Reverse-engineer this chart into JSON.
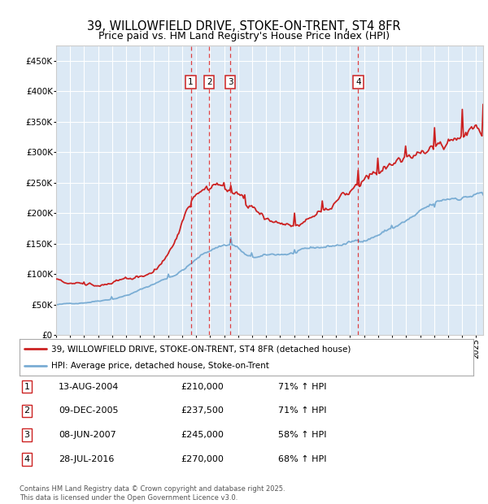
{
  "title": "39, WILLOWFIELD DRIVE, STOKE-ON-TRENT, ST4 8FR",
  "subtitle": "Price paid vs. HM Land Registry's House Price Index (HPI)",
  "ylabel_ticks": [
    "£0",
    "£50K",
    "£100K",
    "£150K",
    "£200K",
    "£250K",
    "£300K",
    "£350K",
    "£400K",
    "£450K"
  ],
  "ytick_values": [
    0,
    50000,
    100000,
    150000,
    200000,
    250000,
    300000,
    350000,
    400000,
    450000
  ],
  "ylim": [
    0,
    475000
  ],
  "xlim_start": 1995.0,
  "xlim_end": 2025.5,
  "background_color": "#dce9f5",
  "grid_color": "#ffffff",
  "sale_dates": [
    2004.617,
    2005.936,
    2007.44,
    2016.573
  ],
  "sale_prices": [
    210000,
    237500,
    245000,
    270000
  ],
  "sale_labels": [
    "1",
    "2",
    "3",
    "4"
  ],
  "vline_color": "#dd2222",
  "marker_box_color": "#cc2222",
  "legend_line1": "39, WILLOWFIELD DRIVE, STOKE-ON-TRENT, ST4 8FR (detached house)",
  "legend_line2": "HPI: Average price, detached house, Stoke-on-Trent",
  "table_rows": [
    [
      "1",
      "13-AUG-2004",
      "£210,000",
      "71% ↑ HPI"
    ],
    [
      "2",
      "09-DEC-2005",
      "£237,500",
      "71% ↑ HPI"
    ],
    [
      "3",
      "08-JUN-2007",
      "£245,000",
      "58% ↑ HPI"
    ],
    [
      "4",
      "28-JUL-2016",
      "£270,000",
      "68% ↑ HPI"
    ]
  ],
  "footer": "Contains HM Land Registry data © Crown copyright and database right 2025.\nThis data is licensed under the Open Government Licence v3.0.",
  "red_line_color": "#cc2222",
  "blue_line_color": "#7aadd4",
  "title_fontsize": 10.5,
  "subtitle_fontsize": 9
}
